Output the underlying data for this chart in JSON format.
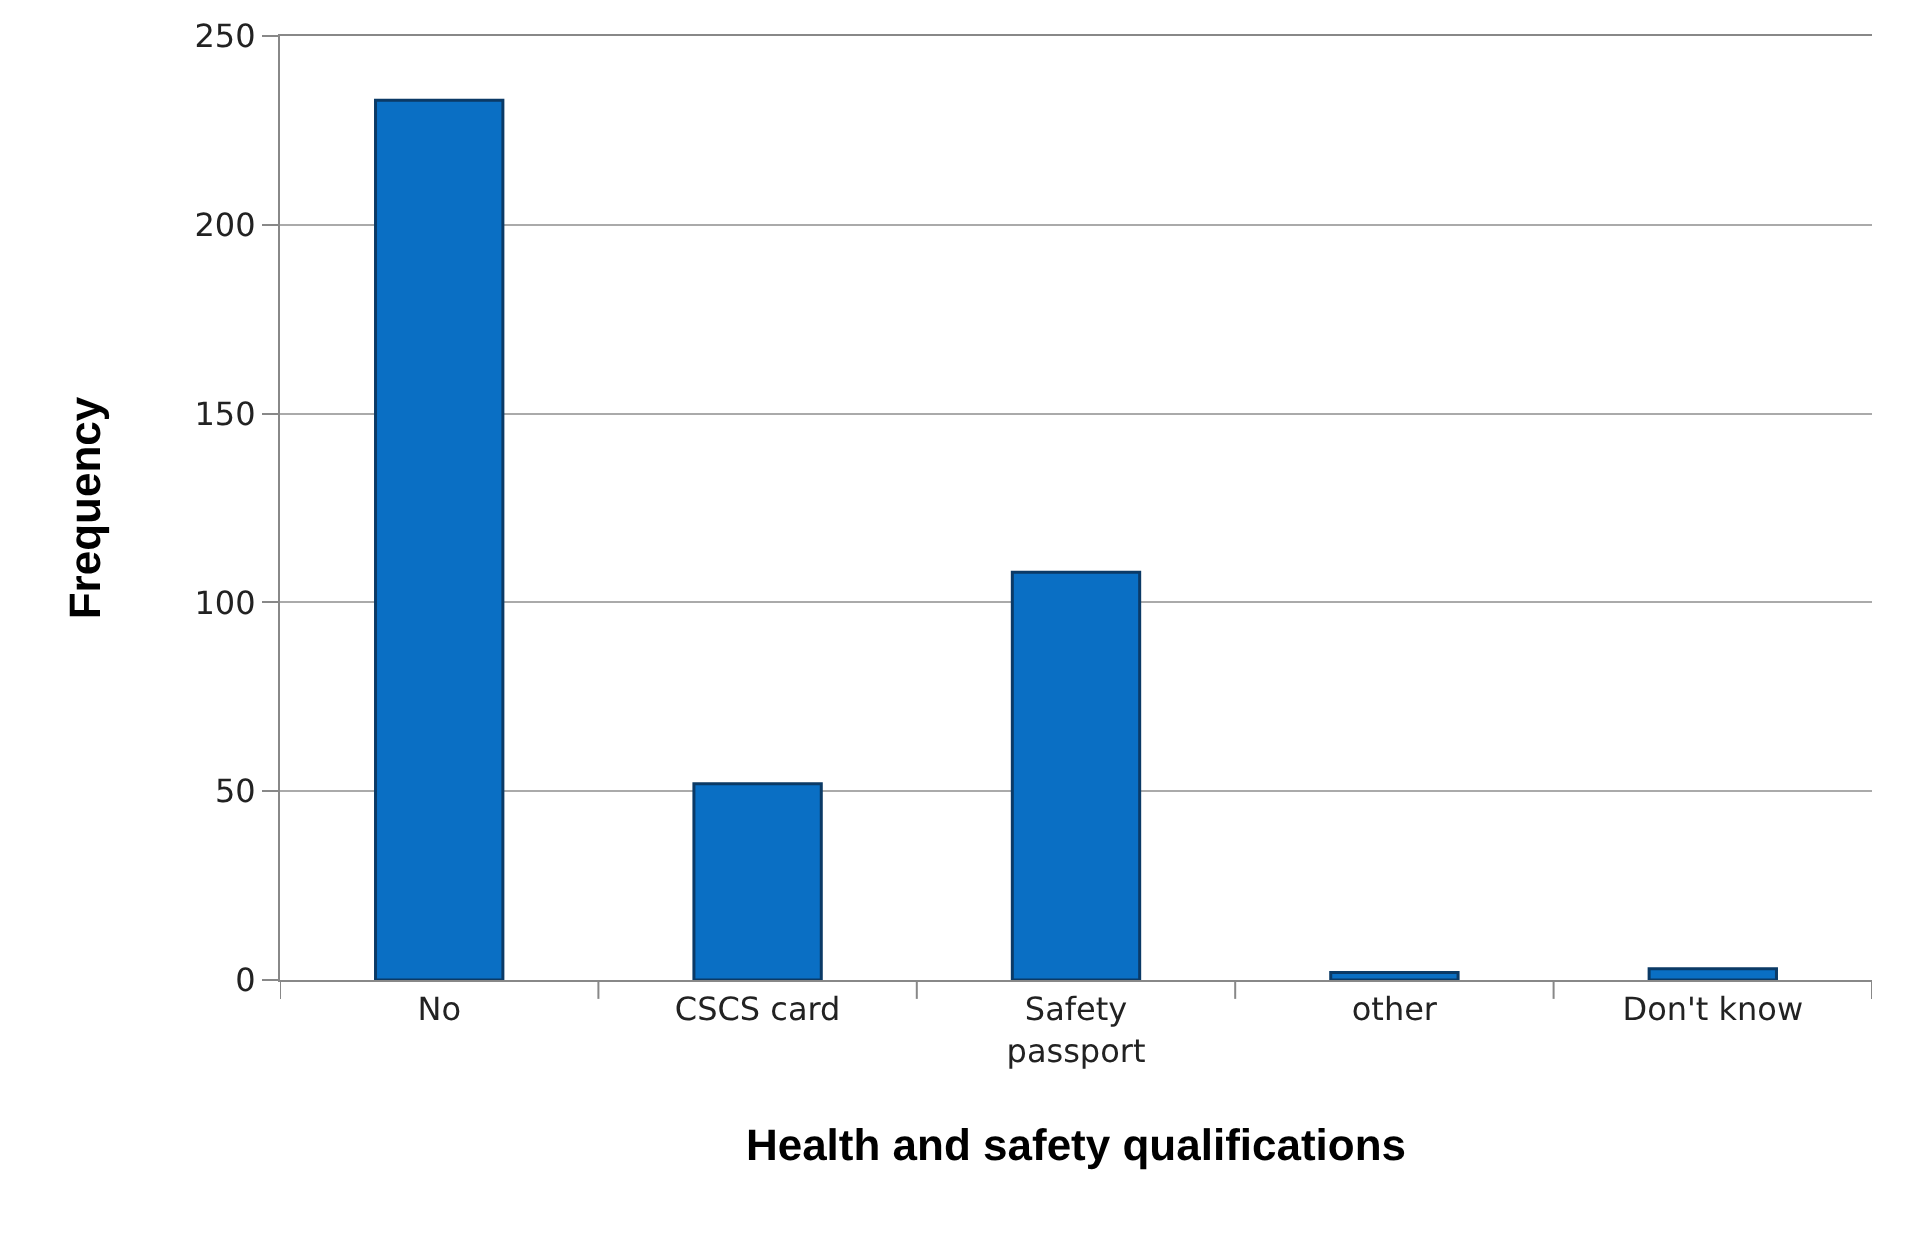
{
  "chart_data": {
    "type": "bar",
    "xlabel": "Health and safety qualifications",
    "ylabel": "Frequency",
    "categories": [
      "No",
      "CSCS card",
      "Safety passport",
      "other",
      "Don't know"
    ],
    "values": [
      233,
      52,
      108,
      2,
      3
    ],
    "color": "#0a6fc4",
    "ylim": [
      0,
      250
    ],
    "yticks": [
      0,
      50,
      100,
      150,
      200,
      250
    ],
    "grid": "y"
  }
}
